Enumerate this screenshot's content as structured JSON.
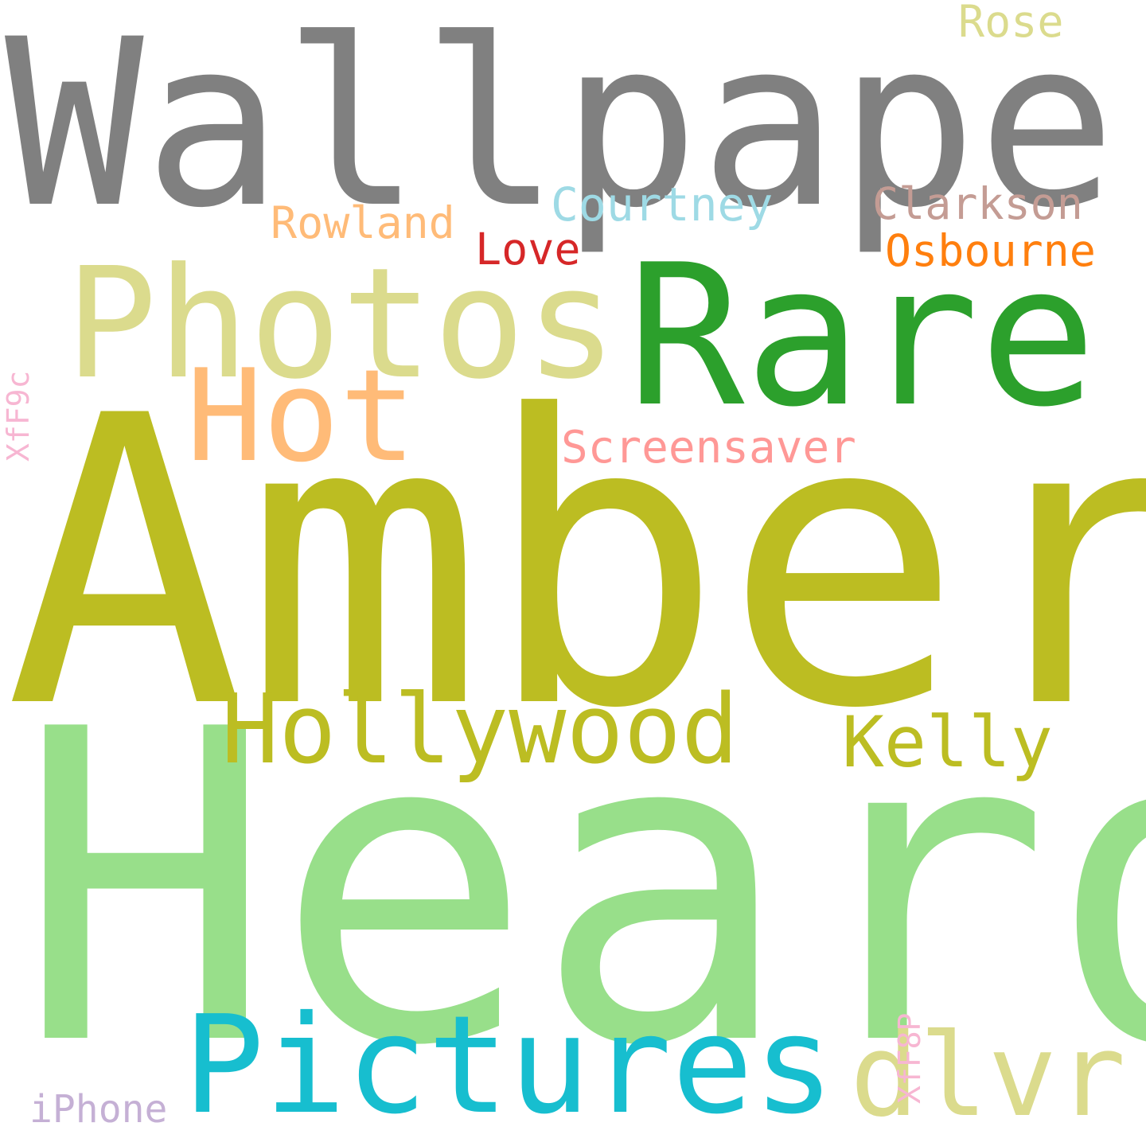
{
  "words": {
    "wallpaper": {
      "text": "Wallpaper",
      "color": "#808080"
    },
    "amber": {
      "text": "Amber",
      "color": "#bcbd22"
    },
    "heard": {
      "text": "Heard",
      "color": "#98df8a"
    },
    "rare": {
      "text": "Rare",
      "color": "#2ca02c"
    },
    "photos": {
      "text": "Photos",
      "color": "#dbdb8d"
    },
    "hot": {
      "text": "Hot",
      "color": "#ffbb78"
    },
    "hollywood": {
      "text": "Hollywood",
      "color": "#bcbd22"
    },
    "kelly": {
      "text": "Kelly",
      "color": "#bcbd22"
    },
    "pictures": {
      "text": "Pictures",
      "color": "#17becf"
    },
    "dlvr": {
      "text": "dlvr",
      "color": "#dbdb8d"
    },
    "screensaver": {
      "text": "Screensaver",
      "color": "#ff9896"
    },
    "courtney": {
      "text": "Courtney",
      "color": "#9edae5"
    },
    "clarkson": {
      "text": "Clarkson",
      "color": "#c49c94"
    },
    "rowland": {
      "text": "Rowland",
      "color": "#ffbb78"
    },
    "osbourne": {
      "text": "Osbourne",
      "color": "#ff7f0e"
    },
    "love": {
      "text": "Love",
      "color": "#d62728"
    },
    "rose": {
      "text": "Rose",
      "color": "#dbdb8d"
    },
    "iphone": {
      "text": "iPhone",
      "color": "#c5b0d5"
    },
    "xff9c": {
      "text": "XfF9c",
      "color": "#f7b6d2"
    },
    "xff8p": {
      "text": "XfF8P",
      "color": "#f7b6d2"
    }
  }
}
